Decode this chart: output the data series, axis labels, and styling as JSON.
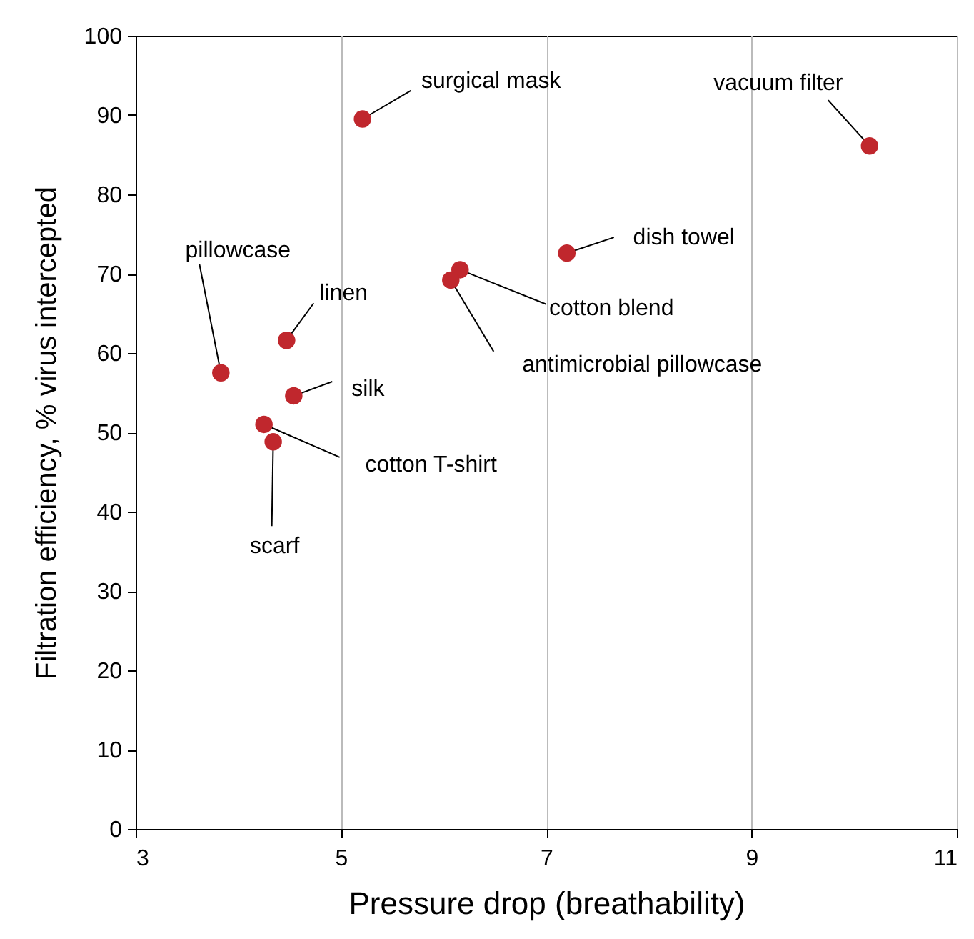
{
  "chart_data": {
    "type": "scatter",
    "xlabel": "Pressure drop (breathability)",
    "ylabel": "Filtration efficiency, % virus  intercepted",
    "x": [
      5.21,
      10.15,
      7.2,
      6.16,
      6.07,
      4.47,
      3.83,
      4.54,
      4.25,
      4.34
    ],
    "series": [
      {
        "color": "#c0272d",
        "values": [
          89.5,
          86.1,
          72.6,
          70.5,
          69.2,
          61.6,
          57.5,
          54.6,
          51.0,
          48.8
        ]
      }
    ],
    "xlim": [
      3,
      11
    ],
    "xticks": [
      3,
      5,
      7,
      9,
      11
    ],
    "ylim": [
      0,
      100
    ],
    "yticks": [
      0,
      10,
      20,
      30,
      40,
      50,
      60,
      70,
      80,
      90,
      100
    ],
    "grid": "x",
    "marker": "circle",
    "annotations": [
      {
        "text": "surgical mask",
        "x": 5.21,
        "y": 89.5
      },
      {
        "text": "vacuum filter",
        "x": 10.15,
        "y": 86.1
      },
      {
        "text": "dish towel",
        "x": 7.2,
        "y": 72.6
      },
      {
        "text": "cotton blend",
        "x": 6.16,
        "y": 70.5
      },
      {
        "text": "antimicrobial pillowcase",
        "x": 6.07,
        "y": 69.2
      },
      {
        "text": "linen",
        "x": 4.47,
        "y": 61.6
      },
      {
        "text": "pillowcase",
        "x": 3.83,
        "y": 57.5
      },
      {
        "text": "silk",
        "x": 4.54,
        "y": 54.6
      },
      {
        "text": "cotton T-shirt",
        "x": 4.25,
        "y": 51.0
      },
      {
        "text": "scarf",
        "x": 4.34,
        "y": 48.8
      }
    ]
  }
}
